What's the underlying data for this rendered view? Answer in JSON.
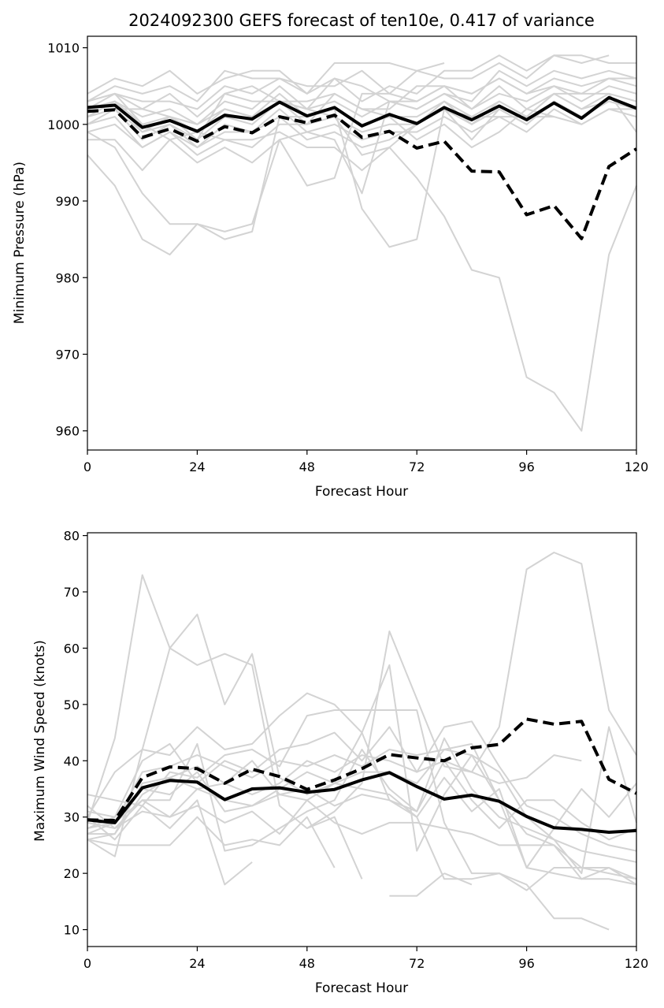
{
  "colors": {
    "member": "#d3d3d3",
    "mean": "#000000",
    "highlight": "#000000",
    "axes": "#000000"
  },
  "chart_data": [
    {
      "type": "line",
      "title": "2024092300 GEFS forecast of ten10e, 0.417 of variance",
      "xlabel": "Forecast Hour",
      "ylabel": "Minimum Pressure (hPa)",
      "xlim": [
        0,
        120
      ],
      "ylim": [
        957.5,
        1011.5
      ],
      "xticks": [
        0,
        24,
        48,
        72,
        96,
        120
      ],
      "yticks": [
        960,
        970,
        980,
        990,
        1000,
        1010
      ],
      "x": [
        0,
        6,
        12,
        18,
        24,
        30,
        36,
        42,
        48,
        54,
        60,
        66,
        72,
        78,
        84,
        90,
        96,
        102,
        108,
        114,
        120
      ],
      "members": [
        [
          1004,
          1006,
          1005,
          1007,
          1004,
          1006,
          1007,
          1007,
          1004,
          1006,
          1003,
          1005,
          1004,
          1007,
          1007,
          1009,
          1007,
          1009,
          1009,
          1008,
          1008
        ],
        [
          1003,
          1005,
          1004,
          1005,
          1003,
          1007,
          1006,
          1006,
          1005,
          1005,
          1007,
          1004,
          1007,
          1006,
          1006,
          1008,
          1006,
          1009,
          1008,
          1009,
          null
        ],
        [
          1003,
          1004,
          1003,
          1003,
          1002,
          1005,
          1004,
          1006,
          1004,
          1008,
          1008,
          1008,
          1007,
          1008,
          null,
          null,
          null,
          null,
          null,
          null,
          null
        ],
        [
          1002,
          1004,
          1002,
          1004,
          1001,
          1004,
          1005,
          1003,
          1003,
          1004,
          1002,
          1002,
          1005,
          1005,
          1004,
          1006,
          1004,
          1006,
          1005,
          1006,
          1006
        ],
        [
          1002,
          1003,
          1001,
          1002,
          1000,
          1003,
          1002,
          1005,
          1002,
          1003,
          1001,
          1003,
          1002,
          1004,
          1002,
          1004,
          1003,
          1005,
          1003,
          1005,
          1004
        ],
        [
          1001,
          1003,
          1000,
          1001,
          999,
          1002,
          1001,
          1004,
          1001,
          1002,
          1000,
          1001,
          1001,
          1003,
          1001,
          1003,
          1001,
          1004,
          1002,
          1004,
          1003
        ],
        [
          1001,
          1002,
          999,
          1000,
          998,
          1001,
          1000,
          1003,
          1000,
          1001,
          999,
          1000,
          1000,
          1002,
          1000,
          1002,
          1000,
          1003,
          1001,
          1003,
          1002
        ],
        [
          1000,
          1002,
          998,
          1000,
          997,
          1000,
          999,
          1002,
          999,
          1000,
          998,
          999,
          999,
          1001,
          999,
          1001,
          999,
          1002,
          1000,
          1002,
          1001
        ],
        [
          1000,
          1001,
          997,
          999,
          997,
          999,
          999,
          1001,
          998,
          999,
          997,
          998,
          1000,
          1002,
          998,
          1002,
          1000,
          1003,
          1001,
          null,
          null
        ],
        [
          1003,
          1004,
          1000,
          998,
          999,
          998,
          997,
          1000,
          1000,
          1004,
          1002,
          1001,
          998,
          1000,
          997,
          999,
          1002,
          1001,
          1000,
          1002,
          1002
        ],
        [
          1002,
          1003,
          999,
          1001,
          998,
          1004,
          1003,
          1003,
          1002,
          1006,
          1005,
          1003,
          1002,
          1004,
          1003,
          1007,
          1005,
          1007,
          1006,
          1007,
          1006
        ],
        [
          999,
          1000,
          997,
          999,
          996,
          998,
          998,
          999,
          997,
          997,
          994,
          997,
          1000,
          1003,
          1000,
          1003,
          1001,
          1004,
          1002,
          1003,
          null
        ],
        [
          998,
          998,
          994,
          998,
          995,
          997,
          995,
          998,
          992,
          993,
          1004,
          1004,
          1003,
          1005,
          1004,
          1006,
          1004,
          1005,
          1004,
          1006,
          1005
        ],
        [
          999,
          997,
          991,
          987,
          987,
          986,
          987,
          998,
          999,
          998,
          991,
          1003,
          1003,
          1005,
          1002,
          1005,
          1002,
          1004,
          1004,
          1004,
          999
        ],
        [
          996,
          992,
          985,
          983,
          987,
          985,
          986,
          1001,
          1001,
          1002,
          989,
          984,
          985,
          1002,
          1001,
          1001,
          1001,
          1001,
          null,
          null,
          null
        ],
        [
          1001,
          1002,
          1002,
          1001,
          1000,
          1002,
          1001,
          1003,
          1002,
          1001,
          996,
          997,
          993,
          988,
          981,
          980,
          967,
          965,
          960,
          983,
          992
        ]
      ],
      "series": [
        {
          "values": [
            1002.2,
            1002.5,
            999.6,
            1000.5,
            999.1,
            1001.2,
            1000.7,
            1002.9,
            1001.1,
            1002.2,
            999.8,
            1001.3,
            1000.1,
            1002.2,
            1000.6,
            1002.4,
            1000.6,
            1002.8,
            1000.8,
            1003.5,
            1002.1
          ]
        },
        {
          "values": [
            1001.7,
            1001.9,
            998.3,
            999.4,
            997.8,
            999.7,
            998.9,
            1001.0,
            1000.2,
            1001.2,
            998.3,
            999.1,
            996.9,
            997.8,
            993.9,
            993.8,
            988.2,
            989.4,
            985.1,
            994.5,
            996.8
          ]
        }
      ]
    },
    {
      "type": "line",
      "title": "",
      "xlabel": "Forecast Hour",
      "ylabel": "Maximum Wind Speed (knots)",
      "xlim": [
        0,
        120
      ],
      "ylim": [
        7,
        80.5
      ],
      "xticks": [
        0,
        24,
        48,
        72,
        96,
        120
      ],
      "yticks": [
        10,
        20,
        30,
        40,
        50,
        60,
        70,
        80
      ],
      "x": [
        0,
        6,
        12,
        18,
        24,
        30,
        36,
        42,
        48,
        54,
        60,
        66,
        72,
        78,
        84,
        90,
        96,
        102,
        108,
        114,
        120
      ],
      "members": [
        [
          26,
          23,
          42,
          60,
          57,
          59,
          57,
          32,
          28,
          31,
          36,
          63,
          51,
          39,
          38,
          46,
          74,
          77,
          75,
          49,
          41
        ],
        [
          29,
          44,
          73,
          60,
          66,
          50,
          59,
          37,
          34,
          36,
          45,
          57,
          24,
          34,
          41,
          33,
          21,
          28,
          35,
          30,
          36
        ],
        [
          30,
          38,
          42,
          41,
          46,
          42,
          43,
          48,
          52,
          50,
          45,
          33,
          31,
          44,
          35,
          30,
          28,
          26,
          20,
          46,
          29
        ],
        [
          34,
          33,
          32,
          38,
          37,
          41,
          42,
          39,
          48,
          49,
          49,
          49,
          49,
          29,
          20,
          20,
          18,
          12,
          12,
          10,
          null
        ],
        [
          28,
          30,
          40,
          43,
          36,
          40,
          38,
          42,
          43,
          45,
          40,
          46,
          38,
          40,
          38,
          36,
          37,
          41,
          40,
          null,
          null
        ],
        [
          27,
          29,
          38,
          39,
          41,
          39,
          37,
          40,
          39,
          41,
          39,
          42,
          41,
          42,
          41,
          38,
          30,
          26,
          24,
          23,
          22
        ],
        [
          27,
          27,
          36,
          37,
          39,
          36,
          34,
          36,
          40,
          38,
          41,
          40,
          38,
          46,
          47,
          39,
          32,
          30,
          27,
          25,
          24
        ],
        [
          26,
          27,
          34,
          37,
          35,
          33,
          32,
          35,
          38,
          36,
          38,
          38,
          36,
          42,
          43,
          33,
          27,
          25,
          21,
          20,
          19
        ],
        [
          28,
          29,
          33,
          33,
          43,
          24,
          25,
          28,
          31,
          33,
          42,
          35,
          31,
          40,
          33,
          28,
          33,
          33,
          29,
          26,
          28
        ],
        [
          32,
          28,
          33,
          30,
          35,
          36,
          40,
          34,
          35,
          32,
          34,
          33,
          30,
          37,
          31,
          35,
          21,
          20,
          19,
          19,
          18
        ],
        [
          30,
          26,
          32,
          28,
          33,
          18,
          22,
          null,
          28,
          30,
          19,
          null,
          null,
          20,
          18,
          null,
          null,
          null,
          null,
          null,
          null
        ],
        [
          26,
          25,
          25,
          25,
          30,
          25,
          26,
          25,
          30,
          21,
          null,
          16,
          16,
          20,
          null,
          null,
          null,
          null,
          null,
          null,
          null
        ],
        [
          29,
          28,
          31,
          30,
          32,
          29,
          31,
          27,
          33,
          29,
          27,
          29,
          29,
          28,
          27,
          25,
          25,
          25,
          19,
          21,
          18
        ],
        [
          31,
          30,
          35,
          34,
          38,
          31,
          32,
          34,
          33,
          36,
          35,
          34,
          30,
          19,
          19,
          20,
          17,
          21,
          21,
          21,
          19
        ]
      ],
      "series": [
        {
          "values": [
            29.5,
            29.0,
            35.2,
            36.5,
            36.2,
            33.1,
            35.0,
            35.2,
            34.4,
            34.9,
            36.6,
            37.9,
            35.4,
            33.2,
            33.9,
            32.8,
            30.1,
            28.1,
            27.8,
            27.3,
            27.6
          ]
        },
        {
          "values": [
            29.5,
            29.4,
            37.0,
            38.9,
            38.6,
            36.0,
            38.5,
            37.2,
            34.9,
            36.6,
            38.6,
            41.1,
            40.5,
            40.0,
            42.3,
            42.9,
            47.4,
            46.5,
            47.0,
            36.7,
            34.2
          ]
        }
      ]
    }
  ]
}
